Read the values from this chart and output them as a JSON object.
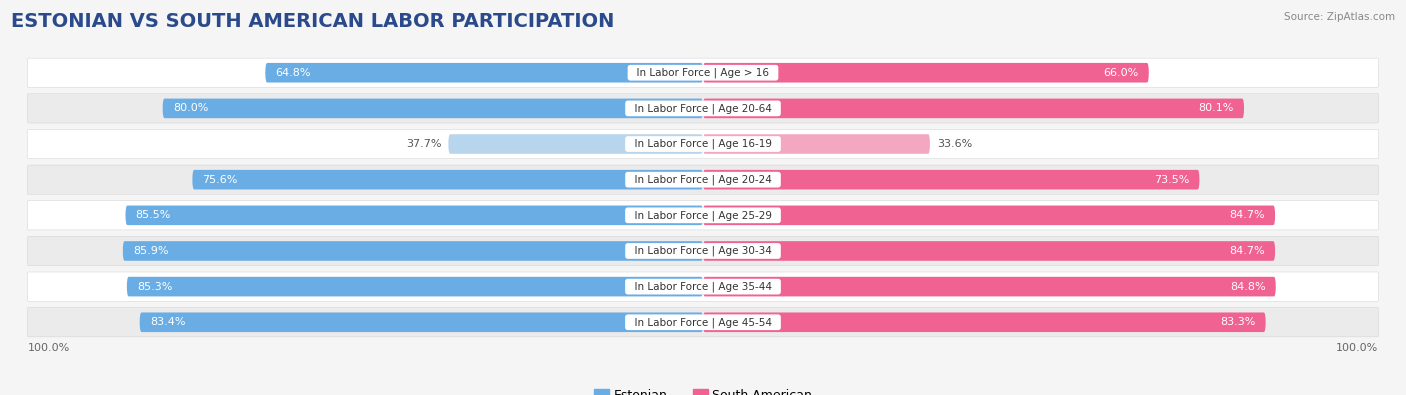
{
  "title": "ESTONIAN VS SOUTH AMERICAN LABOR PARTICIPATION",
  "source": "Source: ZipAtlas.com",
  "categories": [
    "In Labor Force | Age > 16",
    "In Labor Force | Age 20-64",
    "In Labor Force | Age 16-19",
    "In Labor Force | Age 20-24",
    "In Labor Force | Age 25-29",
    "In Labor Force | Age 30-34",
    "In Labor Force | Age 35-44",
    "In Labor Force | Age 45-54"
  ],
  "estonian_values": [
    64.8,
    80.0,
    37.7,
    75.6,
    85.5,
    85.9,
    85.3,
    83.4
  ],
  "southamerican_values": [
    66.0,
    80.1,
    33.6,
    73.5,
    84.7,
    84.7,
    84.8,
    83.3
  ],
  "estonian_color": "#6aade4",
  "estonian_color_light": "#b8d5ee",
  "southamerican_color": "#f06292",
  "southamerican_color_light": "#f4a7c0",
  "row_bg_color": "#e0e0e0",
  "title_color": "#2a4a8b",
  "background_color": "#f5f5f5",
  "title_fontsize": 14,
  "value_fontsize": 8,
  "cat_fontsize": 7.5,
  "legend_fontsize": 9,
  "axis_label": "100.0%"
}
